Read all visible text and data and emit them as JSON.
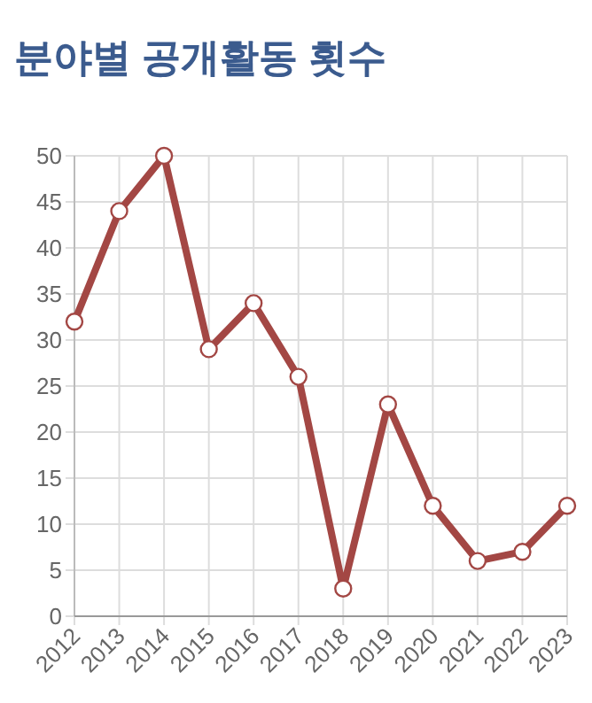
{
  "chart_data": {
    "type": "line",
    "title": "분야별 공개활동 횟수",
    "categories": [
      "2012",
      "2013",
      "2014",
      "2015",
      "2016",
      "2017",
      "2018",
      "2019",
      "2020",
      "2021",
      "2022",
      "2023"
    ],
    "series": [
      {
        "color": "#a34744",
        "values": [
          32,
          44,
          50,
          29,
          34,
          26,
          3,
          23,
          12,
          6,
          7,
          12
        ]
      }
    ],
    "ylim": [
      0,
      50
    ],
    "yticks": [
      0,
      5,
      10,
      15,
      20,
      25,
      30,
      35,
      40,
      45,
      50
    ],
    "grid": true,
    "marker": "circle",
    "line_style": "solid"
  }
}
